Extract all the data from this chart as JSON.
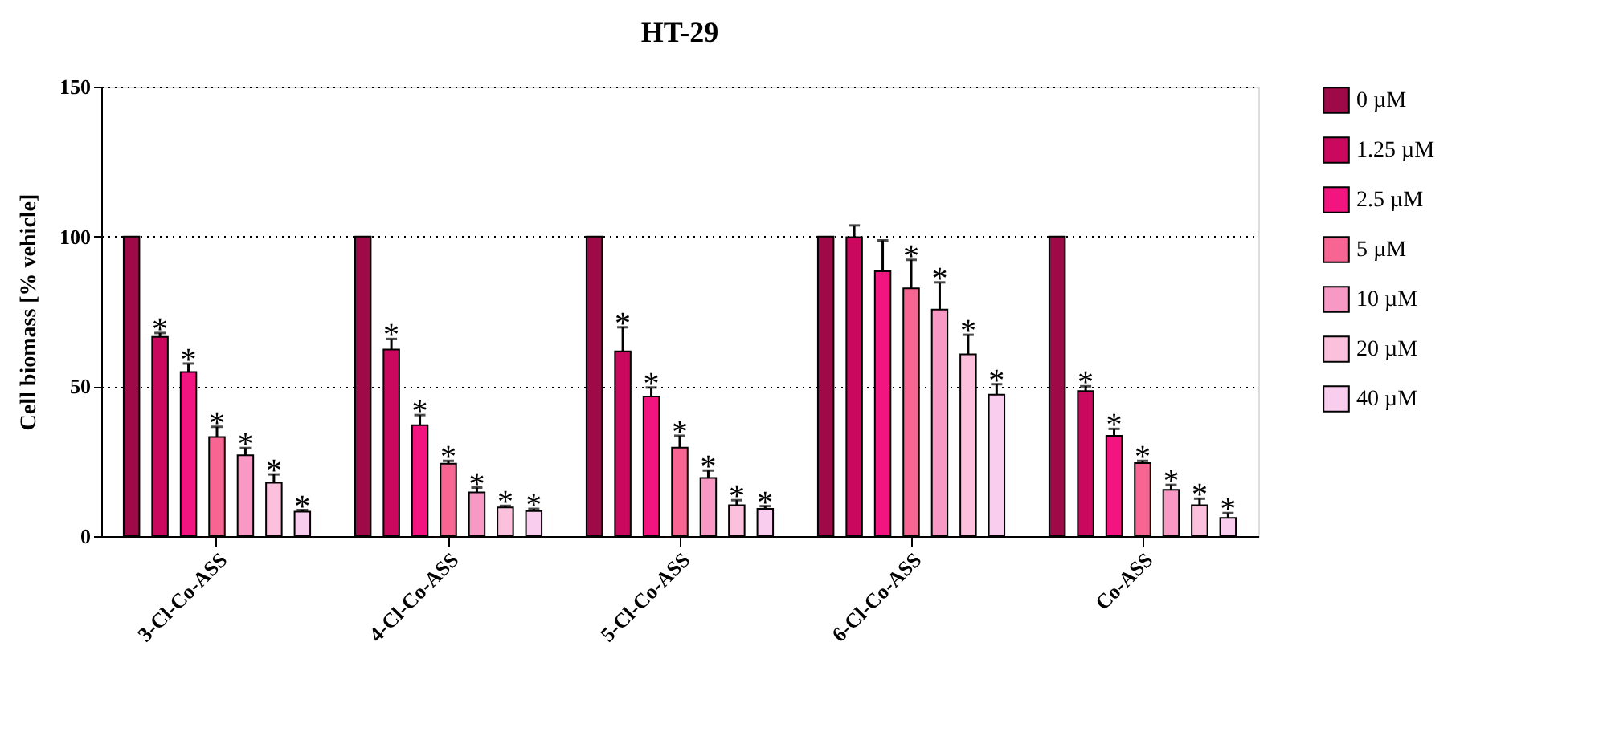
{
  "chart_data": {
    "type": "bar",
    "title": "HT-29",
    "ylabel": "Cell biomass [% vehicle]",
    "categories": [
      "3-Cl-Co-ASS",
      "4-Cl-Co-ASS",
      "5-Cl-Co-ASS",
      "6-Cl-Co-ASS",
      "Co-ASS"
    ],
    "series": [
      {
        "name": "0 µM",
        "color": "#9e0a47",
        "values": [
          100,
          100,
          100,
          100,
          100
        ]
      },
      {
        "name": "1.25 µM",
        "color": "#c9085e",
        "values": [
          66.5,
          62.3,
          61.7,
          99.8,
          48.4
        ],
        "errors": [
          1.3,
          3.5,
          8,
          3.9,
          1.6
        ],
        "value_labels": [
          "*",
          "*",
          "*",
          null,
          "*"
        ]
      },
      {
        "name": "2.5 µM",
        "color": "#f21580",
        "values": [
          54.8,
          37,
          46.6,
          88.4,
          33.5
        ],
        "errors": [
          2.8,
          3.4,
          3,
          10.3,
          2.3
        ],
        "value_labels": [
          "*",
          "*",
          "*",
          null,
          "*"
        ]
      },
      {
        "name": "5 µM",
        "color": "#f76592",
        "values": [
          33.1,
          24.2,
          29.5,
          82.7,
          24.4
        ],
        "errors": [
          3.4,
          0.9,
          4,
          9.5,
          0.7
        ],
        "value_labels": [
          "*",
          "*",
          "*",
          "*",
          "*"
        ]
      },
      {
        "name": "10 µM",
        "color": "#f799c4",
        "values": [
          27,
          14.6,
          19.4,
          75.6,
          15.5
        ],
        "errors": [
          2.4,
          1.6,
          2.5,
          9.1,
          1.6
        ],
        "value_labels": [
          "*",
          "*",
          "*",
          "*",
          "*"
        ]
      },
      {
        "name": "20 µM",
        "color": "#fbc0dc",
        "values": [
          17.8,
          9.6,
          10.3,
          60.7,
          10.3
        ],
        "errors": [
          2.8,
          0.5,
          1.7,
          6.5,
          2.2
        ],
        "value_labels": [
          "*",
          "*",
          "*",
          "*",
          "*"
        ]
      },
      {
        "name": "40 µM",
        "color": "#f9cdee",
        "values": [
          8.2,
          8.4,
          9.1,
          47.2,
          6.1
        ],
        "errors": [
          0.5,
          0.7,
          0.9,
          3.5,
          1.6
        ],
        "value_labels": [
          "*",
          "*",
          "*",
          "*",
          "*"
        ]
      }
    ],
    "ylim": [
      0,
      150
    ],
    "yticks": [
      0,
      50,
      100,
      150
    ],
    "grid": "y",
    "legend": "right"
  }
}
